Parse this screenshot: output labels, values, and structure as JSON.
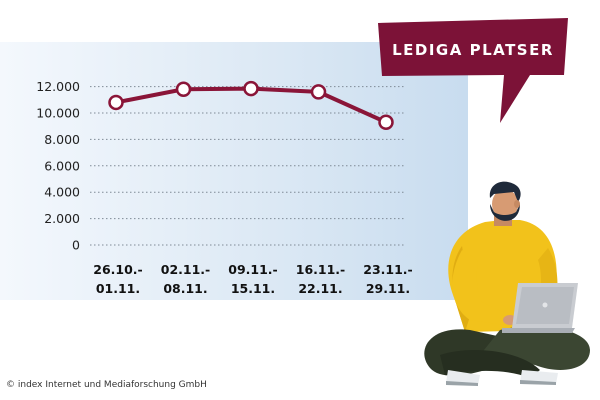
{
  "chart_data": {
    "type": "line",
    "categories": [
      [
        "26.10.-",
        "01.11."
      ],
      [
        "02.11.-",
        "08.11."
      ],
      [
        "09.11.-",
        "15.11."
      ],
      [
        "16.11.-",
        "22.11."
      ],
      [
        "23.11.-",
        "29.11."
      ]
    ],
    "values": [
      10800,
      11800,
      11850,
      11600,
      9300
    ],
    "y_ticks": [
      "0",
      "2.000",
      "4.000",
      "6.000",
      "8.000",
      "10.000",
      "12.000"
    ],
    "ylim": [
      0,
      13000
    ],
    "grid": "dotted horizontal",
    "title": "",
    "xlabel": "",
    "ylabel": ""
  },
  "callout": {
    "text": "LEDIGA PLATSER"
  },
  "footer": {
    "copyright": "© index Internet und Mediaforschung GmbH"
  },
  "colors": {
    "line": "#8a1538",
    "callout": "#7c1237",
    "point_fill": "#ffffff",
    "panel": "#dbe8f4",
    "sweater": "#f2c21b",
    "pants": "#2f3827",
    "laptop": "#c9ccd1",
    "hair": "#1f2a3a"
  },
  "illustration": {
    "name": "person-with-laptop"
  }
}
